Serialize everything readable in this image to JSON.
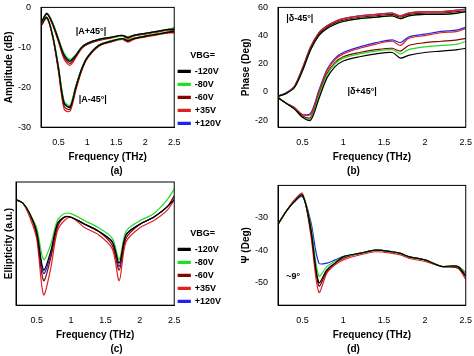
{
  "chart_data": [
    {
      "type": "line",
      "title": "(a)",
      "x_label": "Frequency (THz)",
      "y_label": "Amplitude (dB)",
      "x": [
        0.2,
        0.3,
        0.4,
        0.5,
        0.6,
        0.7,
        0.8,
        0.9,
        1.0,
        1.2,
        1.4,
        1.6,
        1.7,
        1.8,
        2.0,
        2.2,
        2.4,
        2.5
      ],
      "xlim": [
        0.2,
        2.5
      ],
      "xticks": [
        0.5,
        1,
        1.5,
        2,
        2.5
      ],
      "ylim": [
        -30,
        0
      ],
      "yticks": [
        -30,
        -20,
        -10,
        0
      ],
      "grid": false,
      "legend": "right",
      "legend_title": "VBG=",
      "annotations": [
        {
          "text": "|A+45°|",
          "x": 0.8,
          "y": -6
        },
        {
          "text": "|A-45°|",
          "x": 0.85,
          "y": -23
        }
      ],
      "series": [
        {
          "name": "-120V",
          "color": "#000000",
          "values": [
            -4,
            -1.5,
            -4,
            -8,
            -12,
            -13.5,
            -12,
            -10,
            -9,
            -8,
            -7.5,
            -7,
            -7.5,
            -7,
            -6.5,
            -6,
            -5.5,
            -5.5
          ]
        },
        {
          "name": "-80V",
          "color": "#22dd22",
          "values": [
            -4,
            -1.4,
            -3.8,
            -7.8,
            -11.5,
            -13,
            -11.8,
            -10,
            -9,
            -8,
            -7.5,
            -7.2,
            -7.3,
            -7,
            -6.5,
            -6,
            -5.5,
            -5
          ]
        },
        {
          "name": "-60V",
          "color": "#8b0000",
          "values": [
            -4.2,
            -1.6,
            -4.2,
            -8.3,
            -12.5,
            -14,
            -12.3,
            -10.2,
            -9.2,
            -8.2,
            -7.6,
            -7.1,
            -7.6,
            -7.1,
            -6.6,
            -6.1,
            -5.6,
            -5.6
          ]
        },
        {
          "name": "+35V",
          "color": "#dd2222",
          "values": [
            -4.3,
            -1.7,
            -4.4,
            -8.6,
            -13,
            -14.5,
            -12.6,
            -10.4,
            -9.3,
            -8.3,
            -7.7,
            -7.2,
            -7.8,
            -7.2,
            -6.7,
            -6.2,
            -5.7,
            -5.8
          ]
        },
        {
          "name": "+120V",
          "color": "#2222ee",
          "values": [
            -4,
            -1.5,
            -3.9,
            -7.9,
            -11.7,
            -13.2,
            -11.9,
            -10,
            -9,
            -8,
            -7.5,
            -7,
            -7.4,
            -7,
            -6.5,
            -6,
            -5.5,
            -5.3
          ]
        },
        {
          "name": "-120V",
          "color": "#000000",
          "values": [
            -4.5,
            -2.5,
            -7,
            -15,
            -24,
            -25,
            -20,
            -15.5,
            -12.5,
            -9.5,
            -8.5,
            -7.8,
            -8.3,
            -7.8,
            -7.2,
            -6.7,
            -6.2,
            -6
          ]
        },
        {
          "name": "-80V",
          "color": "#22dd22",
          "values": [
            -4.4,
            -2.4,
            -6.8,
            -14.6,
            -23.5,
            -24.5,
            -19.7,
            -15.3,
            -12.4,
            -9.4,
            -8.4,
            -7.9,
            -8.1,
            -7.7,
            -7.1,
            -6.6,
            -6.1,
            -5.6
          ]
        },
        {
          "name": "-60V",
          "color": "#8b0000",
          "values": [
            -4.6,
            -2.6,
            -7.2,
            -15.5,
            -24.8,
            -25.5,
            -20.4,
            -15.8,
            -12.7,
            -9.6,
            -8.6,
            -7.9,
            -8.5,
            -7.9,
            -7.3,
            -6.8,
            -6.3,
            -6.2
          ]
        },
        {
          "name": "+35V",
          "color": "#dd2222",
          "values": [
            -4.7,
            -2.7,
            -7.4,
            -16,
            -25.5,
            -26,
            -20.8,
            -16,
            -12.8,
            -9.7,
            -8.7,
            -8,
            -8.7,
            -8,
            -7.4,
            -6.9,
            -6.4,
            -6.4
          ]
        },
        {
          "name": "+120V",
          "color": "#2222ee",
          "values": [
            -4.4,
            -2.5,
            -6.9,
            -14.8,
            -23.8,
            -24.8,
            -19.8,
            -15.4,
            -12.4,
            -9.4,
            -8.4,
            -7.8,
            -8.2,
            -7.8,
            -7.2,
            -6.7,
            -6.2,
            -5.8
          ]
        }
      ]
    },
    {
      "type": "line",
      "title": "(b)",
      "x_label": "Frequency (THz)",
      "y_label": "Phase (Deg)",
      "x": [
        0.2,
        0.3,
        0.4,
        0.5,
        0.6,
        0.7,
        0.8,
        0.9,
        1.0,
        1.2,
        1.4,
        1.6,
        1.7,
        1.8,
        2.0,
        2.2,
        2.4,
        2.5
      ],
      "xlim": [
        0.2,
        2.5
      ],
      "xticks": [
        0.5,
        1,
        1.5,
        2,
        2.5
      ],
      "ylim": [
        -25,
        60
      ],
      "yticks": [
        -20,
        0,
        20,
        40,
        60
      ],
      "grid": false,
      "annotations": [
        {
          "text": "|δ-45°|",
          "x": 0.3,
          "y": 52
        },
        {
          "text": "|δ+45°|",
          "x": 1.05,
          "y": 0
        }
      ],
      "series": [
        {
          "name": "-120V",
          "color": "#000000",
          "values": [
            -3,
            -1,
            3,
            15,
            30,
            40,
            45,
            48,
            50,
            52,
            53,
            54,
            52,
            54,
            55,
            55,
            56,
            57
          ]
        },
        {
          "name": "-80V",
          "color": "#22dd22",
          "values": [
            -3,
            -1,
            3,
            15,
            30,
            40,
            45,
            48,
            50,
            52,
            53,
            54,
            52,
            54,
            55,
            55,
            56,
            58
          ]
        },
        {
          "name": "-60V",
          "color": "#8b0000",
          "values": [
            -3,
            -1,
            3.5,
            16,
            31,
            41,
            46,
            49,
            51,
            53,
            54,
            55,
            53,
            55,
            56,
            56,
            57,
            57
          ]
        },
        {
          "name": "+35V",
          "color": "#dd2222",
          "values": [
            -3,
            -1,
            4,
            17,
            32,
            42,
            47,
            50,
            52,
            54,
            55,
            56,
            54,
            56,
            57,
            57,
            58,
            58
          ]
        },
        {
          "name": "+120V",
          "color": "#2222ee",
          "values": [
            -3,
            -0.5,
            4,
            17,
            32,
            42,
            47,
            50,
            52,
            54,
            55,
            56,
            54,
            56,
            57,
            57,
            58,
            59
          ]
        },
        {
          "name": "-120V",
          "color": "#000000",
          "values": [
            -4,
            -8,
            -12,
            -18,
            -20,
            -5,
            10,
            18,
            22,
            25,
            27,
            28,
            24,
            26,
            28,
            29,
            30,
            31
          ]
        },
        {
          "name": "-80V",
          "color": "#22dd22",
          "values": [
            -4,
            -8,
            -12,
            -18,
            -19,
            -3,
            12,
            20,
            24,
            27,
            29,
            30,
            27,
            30,
            32,
            33,
            34,
            36
          ]
        },
        {
          "name": "-60V",
          "color": "#8b0000",
          "values": [
            -4,
            -8,
            -12,
            -17,
            -18,
            -2,
            13,
            21,
            25,
            28,
            30,
            31,
            29,
            33,
            35,
            36,
            37,
            38
          ]
        },
        {
          "name": "+35V",
          "color": "#dd2222",
          "values": [
            -4,
            -8,
            -11,
            -16,
            -16,
            0,
            15,
            23,
            27,
            31,
            34,
            36,
            33,
            38,
            40,
            42,
            43,
            45
          ]
        },
        {
          "name": "+120V",
          "color": "#2222ee",
          "values": [
            -4,
            -8,
            -11,
            -16,
            -15,
            1,
            16,
            24,
            28,
            32,
            35,
            37,
            35,
            39,
            41,
            43,
            44,
            46
          ]
        }
      ]
    },
    {
      "type": "line",
      "title": "(c)",
      "x_label": "Frequency (THz)",
      "y_label": "Ellipticity (a.u.)",
      "x": [
        0.2,
        0.3,
        0.4,
        0.5,
        0.6,
        0.7,
        0.8,
        0.9,
        1.0,
        1.2,
        1.4,
        1.6,
        1.7,
        1.8,
        2.0,
        2.2,
        2.4,
        2.5
      ],
      "xlim": [
        0.2,
        2.5
      ],
      "xticks": [
        0.5,
        1,
        1.5,
        2,
        2.5
      ],
      "ylim": [
        -0.3,
        0.05
      ],
      "tick_labels": "x",
      "grid": false,
      "legend": "right",
      "legend_title": "VBG=",
      "series": [
        {
          "name": "-120V",
          "color": "#000000",
          "values": [
            0,
            -0.01,
            -0.04,
            -0.09,
            -0.2,
            -0.15,
            -0.07,
            -0.05,
            -0.05,
            -0.07,
            -0.09,
            -0.12,
            -0.18,
            -0.1,
            -0.07,
            -0.05,
            -0.02,
            0
          ]
        },
        {
          "name": "-80V",
          "color": "#22dd22",
          "values": [
            0,
            -0.01,
            -0.04,
            -0.08,
            -0.17,
            -0.13,
            -0.06,
            -0.04,
            -0.04,
            -0.06,
            -0.08,
            -0.11,
            -0.17,
            -0.09,
            -0.06,
            -0.04,
            0,
            0.03
          ]
        },
        {
          "name": "-60V",
          "color": "#8b0000",
          "values": [
            0,
            -0.01,
            -0.04,
            -0.1,
            -0.23,
            -0.17,
            -0.08,
            -0.05,
            -0.05,
            -0.07,
            -0.09,
            -0.13,
            -0.2,
            -0.11,
            -0.07,
            -0.05,
            -0.02,
            0.01
          ]
        },
        {
          "name": "+35V",
          "color": "#dd2222",
          "values": [
            0,
            -0.01,
            -0.05,
            -0.11,
            -0.27,
            -0.2,
            -0.09,
            -0.06,
            -0.05,
            -0.08,
            -0.1,
            -0.14,
            -0.23,
            -0.12,
            -0.08,
            -0.06,
            -0.03,
            0
          ]
        },
        {
          "name": "+120V",
          "color": "#2222ee",
          "values": [
            0,
            -0.01,
            -0.04,
            -0.09,
            -0.21,
            -0.16,
            -0.07,
            -0.05,
            -0.05,
            -0.07,
            -0.09,
            -0.12,
            -0.19,
            -0.1,
            -0.07,
            -0.05,
            -0.02,
            0.01
          ]
        }
      ]
    },
    {
      "type": "line",
      "title": "(d)",
      "x_label": "Frequency (THz)",
      "y_label": "Ψ (Deg)",
      "x": [
        0.2,
        0.3,
        0.4,
        0.5,
        0.6,
        0.7,
        0.8,
        0.9,
        1.0,
        1.2,
        1.4,
        1.6,
        1.7,
        1.8,
        2.0,
        2.2,
        2.4,
        2.5
      ],
      "xlim": [
        0.2,
        2.5
      ],
      "xticks": [
        0.5,
        1,
        1.5,
        2,
        2.5
      ],
      "ylim": [
        -57,
        -20
      ],
      "yticks": [
        -50,
        -40,
        -30
      ],
      "grid": false,
      "annotations": [
        {
          "text": "~9°",
          "x": 0.3,
          "y": -48
        }
      ],
      "series": [
        {
          "name": "-120V",
          "color": "#000000",
          "values": [
            -32,
            -28,
            -25,
            -23,
            -33,
            -50,
            -46,
            -44,
            -42,
            -41,
            -40,
            -40.5,
            -41,
            -42,
            -43,
            -45,
            -45,
            -48
          ]
        },
        {
          "name": "-80V",
          "color": "#22dd22",
          "values": [
            -32,
            -28,
            -25,
            -23,
            -32,
            -48,
            -45,
            -43.5,
            -42,
            -41,
            -40,
            -40.5,
            -41,
            -42,
            -43,
            -45,
            -45,
            -47
          ]
        },
        {
          "name": "-60V",
          "color": "#8b0000",
          "values": [
            -32,
            -28,
            -25,
            -23,
            -34,
            -51,
            -46.5,
            -44,
            -42.5,
            -41,
            -40,
            -40.5,
            -41,
            -42,
            -43,
            -45,
            -45.5,
            -48
          ]
        },
        {
          "name": "+35V",
          "color": "#dd2222",
          "values": [
            -32,
            -28,
            -24.5,
            -22.5,
            -35,
            -53,
            -47,
            -44.5,
            -43,
            -41.5,
            -40.5,
            -41,
            -41.5,
            -42.5,
            -43.5,
            -45,
            -45.5,
            -49
          ]
        },
        {
          "name": "+120V",
          "color": "#2222ee",
          "values": [
            -32,
            -28,
            -25,
            -23.5,
            -31,
            -44,
            -44,
            -43,
            -42,
            -41,
            -40,
            -40.5,
            -41,
            -42,
            -43,
            -45,
            -45,
            -47
          ]
        }
      ]
    }
  ]
}
